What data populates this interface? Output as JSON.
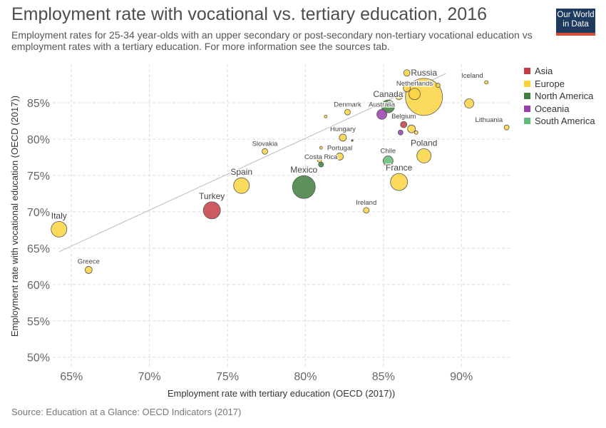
{
  "header": {
    "title": "Employment rate with vocational vs. tertiary education, 2016",
    "subtitle": "Employment rates for 25-34 year-olds with an upper secondary or post-secondary non-tertiary vocational education vs employment rates with a tertiary education. For more information see the sources tab.",
    "logo_line1": "Our World",
    "logo_line2": "in Data",
    "source": "Source: Education at a Glance: OECD Indicators (2017)"
  },
  "colors": {
    "Asia": "#c43d44",
    "Europe": "#fad33f",
    "North America": "#3f7e3c",
    "Oceania": "#9a3eae",
    "South America": "#63bb78"
  },
  "chart_data": {
    "type": "scatter",
    "xlabel": "Employment rate with tertiary education (OECD (2017))",
    "ylabel": "Employment rate with vocational education (OECD (2017))",
    "xlim": [
      63.8,
      93.1
    ],
    "ylim": [
      48.5,
      90.3
    ],
    "xticks": [
      65,
      70,
      75,
      80,
      85,
      90
    ],
    "yticks": [
      50,
      55,
      60,
      65,
      70,
      75,
      80,
      85
    ],
    "tick_suffix": "%",
    "grid": true,
    "legend_position": "right",
    "legend": [
      "Asia",
      "Europe",
      "North America",
      "Oceania",
      "South America"
    ],
    "reference_line": [
      [
        64.2,
        64.5
      ],
      [
        89.0,
        89.0
      ]
    ],
    "points": [
      {
        "label": "Italy",
        "x": 64.2,
        "y": 67.6,
        "size": 11,
        "region": "Europe"
      },
      {
        "label": "Greece",
        "x": 66.1,
        "y": 62.0,
        "size": 5,
        "region": "Europe"
      },
      {
        "label": "Turkey",
        "x": 74.0,
        "y": 70.2,
        "size": 12,
        "region": "Asia"
      },
      {
        "label": "Spain",
        "x": 75.9,
        "y": 73.6,
        "size": 11,
        "region": "Europe"
      },
      {
        "label": "Slovakia",
        "x": 77.4,
        "y": 78.3,
        "size": 4,
        "region": "Europe"
      },
      {
        "label": "Mexico",
        "x": 79.9,
        "y": 73.4,
        "size": 16,
        "region": "North America"
      },
      {
        "label": "Costa Rica",
        "x": 81.0,
        "y": 76.5,
        "size": 3.5,
        "region": "North America"
      },
      {
        "label": "Portugal",
        "x": 82.2,
        "y": 77.6,
        "size": 5,
        "region": "Europe"
      },
      {
        "label": "",
        "x": 80.9,
        "y": 77.1,
        "size": 3,
        "region": "Europe"
      },
      {
        "label": "",
        "x": 81.0,
        "y": 78.8,
        "size": 2,
        "region": "Europe"
      },
      {
        "label": "Hungary",
        "x": 82.4,
        "y": 80.2,
        "size": 5,
        "region": "Europe"
      },
      {
        "label": "Denmark",
        "x": 82.7,
        "y": 83.7,
        "size": 4,
        "region": "Europe"
      },
      {
        "label": "",
        "x": 81.3,
        "y": 83.1,
        "size": 2,
        "region": "Europe"
      },
      {
        "label": "Ireland",
        "x": 83.9,
        "y": 70.2,
        "size": 4,
        "region": "Europe"
      },
      {
        "label": "Chile",
        "x": 85.3,
        "y": 77.0,
        "size": 7,
        "region": "South America"
      },
      {
        "label": "France",
        "x": 86.0,
        "y": 74.1,
        "size": 12,
        "region": "Europe"
      },
      {
        "label": "Australia",
        "x": 84.9,
        "y": 83.4,
        "size": 7,
        "region": "Oceania"
      },
      {
        "label": "Canada",
        "x": 85.3,
        "y": 84.5,
        "size": 9,
        "region": "North America"
      },
      {
        "label": "Belgium",
        "x": 86.3,
        "y": 82.0,
        "size": 4.5,
        "region": "Asia"
      },
      {
        "label": "",
        "x": 86.1,
        "y": 80.9,
        "size": 3.5,
        "region": "Oceania"
      },
      {
        "label": "",
        "x": 86.8,
        "y": 81.4,
        "size": 5.5,
        "region": "Europe"
      },
      {
        "label": "",
        "x": 87.1,
        "y": 80.9,
        "size": 2.5,
        "region": "Europe"
      },
      {
        "label": "Poland",
        "x": 87.6,
        "y": 77.7,
        "size": 10,
        "region": "Europe"
      },
      {
        "label": "Russia",
        "x": 87.6,
        "y": 85.8,
        "size": 26,
        "region": "Europe"
      },
      {
        "label": "Netherlands",
        "x": 87.0,
        "y": 86.2,
        "size": 8,
        "region": "Europe"
      },
      {
        "label": "",
        "x": 86.5,
        "y": 87.0,
        "size": 5,
        "region": "Europe"
      },
      {
        "label": "",
        "x": 86.5,
        "y": 89.1,
        "size": 4.5,
        "region": "Europe"
      },
      {
        "label": "",
        "x": 88.5,
        "y": 87.4,
        "size": 3,
        "region": "Europe"
      },
      {
        "label": "",
        "x": 86.0,
        "y": 85.9,
        "size": 5,
        "region": "Europe"
      },
      {
        "label": "Iceland",
        "x": 91.6,
        "y": 87.8,
        "size": 2.5,
        "region": "Europe"
      },
      {
        "label": "",
        "x": 90.5,
        "y": 84.9,
        "size": 6.5,
        "region": "Europe"
      },
      {
        "label": "Lithuania",
        "x": 92.9,
        "y": 81.6,
        "size": 3.5,
        "region": "Europe"
      },
      {
        "label": "",
        "x": 83.0,
        "y": 79.8,
        "size": 1.2,
        "region": "North America"
      }
    ]
  }
}
